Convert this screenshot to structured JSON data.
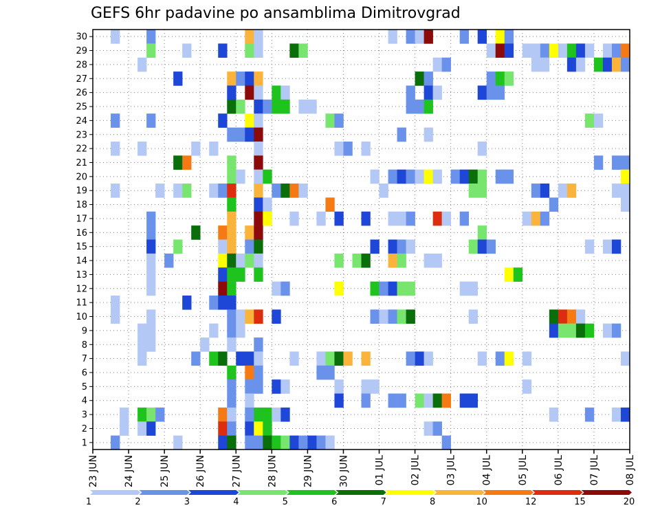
{
  "chart_data": {
    "type": "heatmap",
    "title": "GEFS 6hr padavine po ansamblima Dimitrovgrad",
    "ylim": [
      0.5,
      30.5
    ],
    "xlim": [
      0,
      60
    ],
    "grid": true,
    "yticks": [
      "1",
      "2",
      "3",
      "4",
      "5",
      "6",
      "7",
      "8",
      "9",
      "10",
      "11",
      "12",
      "13",
      "14",
      "15",
      "16",
      "17",
      "18",
      "19",
      "20",
      "21",
      "22",
      "23",
      "24",
      "25",
      "26",
      "27",
      "28",
      "29",
      "30"
    ],
    "xticks": [
      {
        "label": "23 JUN",
        "x": 0
      },
      {
        "label": "24 JUN",
        "x": 4
      },
      {
        "label": "25 JUN",
        "x": 8
      },
      {
        "label": "26 JUN",
        "x": 12
      },
      {
        "label": "27 JUN",
        "x": 16
      },
      {
        "label": "28 JUN",
        "x": 20
      },
      {
        "label": "29 JUN",
        "x": 24
      },
      {
        "label": "30 JUN",
        "x": 28
      },
      {
        "label": "01 JUL",
        "x": 32
      },
      {
        "label": "02 JUL",
        "x": 36
      },
      {
        "label": "03 JUL",
        "x": 40
      },
      {
        "label": "04 JUL",
        "x": 44
      },
      {
        "label": "05 JUL",
        "x": 48
      },
      {
        "label": "06 JUL",
        "x": 52
      },
      {
        "label": "07 JUL",
        "x": 56
      },
      {
        "label": "08 JUL",
        "x": 60
      }
    ],
    "colorbar": {
      "labels": [
        "1",
        "2",
        "3",
        "4",
        "5",
        "6",
        "7",
        "8",
        "10",
        "12",
        "15",
        "20"
      ],
      "colors": [
        "#b4c8f5",
        "#6a92eb",
        "#1e46d7",
        "#78e66e",
        "#1ec31e",
        "#0a6e0a",
        "#ffff00",
        "#fab43c",
        "#f57a14",
        "#dc2d0f",
        "#8c0a0a"
      ]
    },
    "cells": [
      [
        30,
        3,
        0
      ],
      [
        30,
        7,
        1
      ],
      [
        30,
        18,
        7
      ],
      [
        30,
        19,
        0
      ],
      [
        30,
        34,
        0
      ],
      [
        30,
        36,
        1
      ],
      [
        30,
        37,
        0
      ],
      [
        30,
        38,
        10
      ],
      [
        30,
        42,
        1
      ],
      [
        30,
        44,
        2
      ],
      [
        30,
        46,
        6
      ],
      [
        30,
        47,
        1
      ],
      [
        29,
        7,
        3
      ],
      [
        29,
        11,
        0
      ],
      [
        29,
        15,
        2
      ],
      [
        29,
        18,
        3
      ],
      [
        29,
        19,
        0
      ],
      [
        29,
        23,
        5
      ],
      [
        29,
        24,
        3
      ],
      [
        29,
        45,
        0
      ],
      [
        29,
        46,
        10
      ],
      [
        29,
        47,
        2
      ],
      [
        29,
        49,
        0
      ],
      [
        29,
        50,
        0
      ],
      [
        29,
        51,
        1
      ],
      [
        29,
        52,
        6
      ],
      [
        29,
        53,
        0
      ],
      [
        29,
        54,
        4
      ],
      [
        29,
        55,
        2
      ],
      [
        29,
        56,
        0
      ],
      [
        29,
        58,
        0
      ],
      [
        29,
        59,
        1
      ],
      [
        29,
        60,
        8
      ],
      [
        28,
        6,
        0
      ],
      [
        28,
        39,
        0
      ],
      [
        28,
        40,
        1
      ],
      [
        28,
        50,
        0
      ],
      [
        28,
        51,
        0
      ],
      [
        28,
        54,
        2
      ],
      [
        28,
        55,
        0
      ],
      [
        28,
        57,
        4
      ],
      [
        28,
        58,
        2
      ],
      [
        28,
        59,
        7
      ],
      [
        28,
        60,
        1
      ],
      [
        27,
        10,
        2
      ],
      [
        27,
        16,
        7
      ],
      [
        27,
        17,
        1
      ],
      [
        27,
        18,
        2
      ],
      [
        27,
        19,
        7
      ],
      [
        27,
        37,
        5
      ],
      [
        27,
        38,
        1
      ],
      [
        27,
        45,
        1
      ],
      [
        27,
        46,
        4
      ],
      [
        27,
        47,
        3
      ],
      [
        26,
        16,
        2
      ],
      [
        26,
        18,
        10
      ],
      [
        26,
        19,
        0
      ],
      [
        26,
        21,
        4
      ],
      [
        26,
        22,
        0
      ],
      [
        26,
        36,
        1
      ],
      [
        26,
        38,
        2
      ],
      [
        26,
        39,
        0
      ],
      [
        26,
        44,
        2
      ],
      [
        26,
        45,
        1
      ],
      [
        26,
        46,
        1
      ],
      [
        25,
        16,
        5
      ],
      [
        25,
        17,
        3
      ],
      [
        25,
        19,
        2
      ],
      [
        25,
        20,
        1
      ],
      [
        25,
        21,
        4
      ],
      [
        25,
        22,
        4
      ],
      [
        25,
        24,
        0
      ],
      [
        25,
        25,
        0
      ],
      [
        25,
        36,
        1
      ],
      [
        25,
        37,
        1
      ],
      [
        25,
        38,
        4
      ],
      [
        24,
        3,
        1
      ],
      [
        24,
        7,
        1
      ],
      [
        24,
        15,
        2
      ],
      [
        24,
        18,
        6
      ],
      [
        24,
        19,
        0
      ],
      [
        24,
        27,
        3
      ],
      [
        24,
        28,
        1
      ],
      [
        24,
        56,
        3
      ],
      [
        24,
        57,
        0
      ],
      [
        23,
        16,
        1
      ],
      [
        23,
        17,
        1
      ],
      [
        23,
        18,
        2
      ],
      [
        23,
        19,
        10
      ],
      [
        23,
        35,
        1
      ],
      [
        23,
        38,
        0
      ],
      [
        22,
        3,
        0
      ],
      [
        22,
        6,
        0
      ],
      [
        22,
        12,
        0
      ],
      [
        22,
        14,
        0
      ],
      [
        22,
        19,
        0
      ],
      [
        22,
        28,
        0
      ],
      [
        22,
        29,
        1
      ],
      [
        22,
        31,
        0
      ],
      [
        22,
        44,
        0
      ],
      [
        21,
        10,
        5
      ],
      [
        21,
        11,
        8
      ],
      [
        21,
        16,
        3
      ],
      [
        21,
        19,
        10
      ],
      [
        21,
        57,
        1
      ],
      [
        21,
        59,
        1
      ],
      [
        21,
        60,
        1
      ],
      [
        20,
        16,
        3
      ],
      [
        20,
        17,
        0
      ],
      [
        20,
        19,
        0
      ],
      [
        20,
        20,
        4
      ],
      [
        20,
        32,
        0
      ],
      [
        20,
        34,
        1
      ],
      [
        20,
        35,
        2
      ],
      [
        20,
        36,
        1
      ],
      [
        20,
        37,
        0
      ],
      [
        20,
        38,
        6
      ],
      [
        20,
        39,
        0
      ],
      [
        20,
        41,
        1
      ],
      [
        20,
        42,
        2
      ],
      [
        20,
        43,
        5
      ],
      [
        20,
        44,
        3
      ],
      [
        20,
        46,
        1
      ],
      [
        20,
        47,
        1
      ],
      [
        20,
        60,
        6
      ],
      [
        19,
        3,
        0
      ],
      [
        19,
        8,
        0
      ],
      [
        19,
        10,
        0
      ],
      [
        19,
        11,
        3
      ],
      [
        19,
        14,
        0
      ],
      [
        19,
        15,
        1
      ],
      [
        19,
        16,
        9
      ],
      [
        19,
        19,
        7
      ],
      [
        19,
        21,
        1
      ],
      [
        19,
        22,
        5
      ],
      [
        19,
        23,
        8
      ],
      [
        19,
        24,
        0
      ],
      [
        19,
        33,
        0
      ],
      [
        19,
        43,
        3
      ],
      [
        19,
        44,
        3
      ],
      [
        19,
        50,
        1
      ],
      [
        19,
        51,
        2
      ],
      [
        19,
        53,
        0
      ],
      [
        19,
        54,
        7
      ],
      [
        19,
        59,
        0
      ],
      [
        19,
        60,
        0
      ],
      [
        18,
        16,
        4
      ],
      [
        18,
        19,
        2
      ],
      [
        18,
        20,
        0
      ],
      [
        18,
        27,
        8
      ],
      [
        18,
        52,
        1
      ],
      [
        18,
        60,
        0
      ],
      [
        17,
        7,
        1
      ],
      [
        17,
        16,
        7
      ],
      [
        17,
        19,
        10
      ],
      [
        17,
        20,
        6
      ],
      [
        17,
        23,
        0
      ],
      [
        17,
        26,
        0
      ],
      [
        17,
        28,
        2
      ],
      [
        17,
        31,
        2
      ],
      [
        17,
        34,
        0
      ],
      [
        17,
        35,
        0
      ],
      [
        17,
        36,
        1
      ],
      [
        17,
        39,
        9
      ],
      [
        17,
        40,
        0
      ],
      [
        17,
        42,
        1
      ],
      [
        17,
        49,
        0
      ],
      [
        17,
        50,
        7
      ],
      [
        17,
        51,
        1
      ],
      [
        16,
        7,
        1
      ],
      [
        16,
        12,
        5
      ],
      [
        16,
        15,
        8
      ],
      [
        16,
        16,
        7
      ],
      [
        16,
        18,
        7
      ],
      [
        16,
        19,
        10
      ],
      [
        16,
        44,
        3
      ],
      [
        15,
        7,
        2
      ],
      [
        15,
        10,
        3
      ],
      [
        15,
        15,
        0
      ],
      [
        15,
        16,
        7
      ],
      [
        15,
        18,
        1
      ],
      [
        15,
        19,
        5
      ],
      [
        15,
        32,
        2
      ],
      [
        15,
        34,
        2
      ],
      [
        15,
        35,
        1
      ],
      [
        15,
        36,
        0
      ],
      [
        15,
        43,
        3
      ],
      [
        15,
        44,
        2
      ],
      [
        15,
        45,
        1
      ],
      [
        15,
        56,
        0
      ],
      [
        15,
        58,
        0
      ],
      [
        15,
        59,
        2
      ],
      [
        14,
        7,
        0
      ],
      [
        14,
        9,
        1
      ],
      [
        14,
        15,
        6
      ],
      [
        14,
        16,
        5
      ],
      [
        14,
        17,
        0
      ],
      [
        14,
        18,
        3
      ],
      [
        14,
        19,
        0
      ],
      [
        14,
        28,
        3
      ],
      [
        14,
        30,
        3
      ],
      [
        14,
        31,
        5
      ],
      [
        14,
        34,
        7
      ],
      [
        14,
        35,
        3
      ],
      [
        14,
        38,
        0
      ],
      [
        14,
        39,
        0
      ],
      [
        13,
        7,
        0
      ],
      [
        13,
        15,
        2
      ],
      [
        13,
        16,
        4
      ],
      [
        13,
        17,
        4
      ],
      [
        13,
        19,
        4
      ],
      [
        13,
        47,
        6
      ],
      [
        13,
        48,
        4
      ],
      [
        12,
        7,
        0
      ],
      [
        12,
        15,
        10
      ],
      [
        12,
        16,
        4
      ],
      [
        12,
        21,
        0
      ],
      [
        12,
        22,
        1
      ],
      [
        12,
        28,
        6
      ],
      [
        12,
        32,
        4
      ],
      [
        12,
        33,
        1
      ],
      [
        12,
        34,
        2
      ],
      [
        12,
        35,
        3
      ],
      [
        12,
        36,
        3
      ],
      [
        12,
        42,
        0
      ],
      [
        12,
        43,
        0
      ],
      [
        11,
        3,
        0
      ],
      [
        11,
        11,
        2
      ],
      [
        11,
        14,
        1
      ],
      [
        11,
        15,
        2
      ],
      [
        11,
        16,
        2
      ],
      [
        10,
        3,
        0
      ],
      [
        10,
        7,
        0
      ],
      [
        10,
        16,
        1
      ],
      [
        10,
        17,
        0
      ],
      [
        10,
        18,
        7
      ],
      [
        10,
        19,
        9
      ],
      [
        10,
        21,
        2
      ],
      [
        10,
        32,
        1
      ],
      [
        10,
        33,
        0
      ],
      [
        10,
        34,
        1
      ],
      [
        10,
        35,
        3
      ],
      [
        10,
        36,
        5
      ],
      [
        10,
        43,
        0
      ],
      [
        10,
        52,
        5
      ],
      [
        10,
        53,
        9
      ],
      [
        10,
        54,
        8
      ],
      [
        10,
        55,
        0
      ],
      [
        9,
        6,
        0
      ],
      [
        9,
        7,
        0
      ],
      [
        9,
        14,
        0
      ],
      [
        9,
        16,
        1
      ],
      [
        9,
        17,
        0
      ],
      [
        9,
        52,
        2
      ],
      [
        9,
        53,
        3
      ],
      [
        9,
        54,
        3
      ],
      [
        9,
        55,
        5
      ],
      [
        9,
        56,
        4
      ],
      [
        9,
        58,
        0
      ],
      [
        9,
        59,
        1
      ],
      [
        8,
        6,
        0
      ],
      [
        8,
        7,
        0
      ],
      [
        8,
        13,
        0
      ],
      [
        8,
        16,
        0
      ],
      [
        8,
        19,
        1
      ],
      [
        7,
        6,
        0
      ],
      [
        7,
        12,
        1
      ],
      [
        7,
        14,
        4
      ],
      [
        7,
        15,
        5
      ],
      [
        7,
        17,
        2
      ],
      [
        7,
        18,
        2
      ],
      [
        7,
        19,
        0
      ],
      [
        7,
        23,
        0
      ],
      [
        7,
        26,
        0
      ],
      [
        7,
        27,
        3
      ],
      [
        7,
        28,
        5
      ],
      [
        7,
        29,
        7
      ],
      [
        7,
        31,
        7
      ],
      [
        7,
        36,
        1
      ],
      [
        7,
        37,
        2
      ],
      [
        7,
        38,
        0
      ],
      [
        7,
        44,
        0
      ],
      [
        7,
        46,
        1
      ],
      [
        7,
        47,
        6
      ],
      [
        7,
        49,
        0
      ],
      [
        7,
        60,
        0
      ],
      [
        6,
        16,
        4
      ],
      [
        6,
        18,
        8
      ],
      [
        6,
        19,
        1
      ],
      [
        6,
        26,
        1
      ],
      [
        6,
        27,
        1
      ],
      [
        5,
        16,
        1
      ],
      [
        5,
        18,
        1
      ],
      [
        5,
        19,
        1
      ],
      [
        5,
        21,
        2
      ],
      [
        5,
        22,
        0
      ],
      [
        5,
        28,
        0
      ],
      [
        5,
        31,
        0
      ],
      [
        5,
        32,
        0
      ],
      [
        5,
        49,
        0
      ],
      [
        4,
        16,
        1
      ],
      [
        4,
        18,
        0
      ],
      [
        4,
        28,
        2
      ],
      [
        4,
        31,
        1
      ],
      [
        4,
        34,
        1
      ],
      [
        4,
        35,
        1
      ],
      [
        4,
        37,
        3
      ],
      [
        4,
        38,
        0
      ],
      [
        4,
        39,
        5
      ],
      [
        4,
        40,
        8
      ],
      [
        4,
        42,
        2
      ],
      [
        4,
        43,
        2
      ],
      [
        3,
        4,
        0
      ],
      [
        3,
        6,
        4
      ],
      [
        3,
        7,
        3
      ],
      [
        3,
        8,
        1
      ],
      [
        3,
        15,
        8
      ],
      [
        3,
        16,
        0
      ],
      [
        3,
        18,
        1
      ],
      [
        3,
        19,
        4
      ],
      [
        3,
        20,
        4
      ],
      [
        3,
        21,
        0
      ],
      [
        3,
        22,
        2
      ],
      [
        3,
        52,
        0
      ],
      [
        3,
        56,
        1
      ],
      [
        3,
        59,
        0
      ],
      [
        3,
        60,
        2
      ],
      [
        2,
        4,
        0
      ],
      [
        2,
        6,
        0
      ],
      [
        2,
        7,
        2
      ],
      [
        2,
        15,
        9
      ],
      [
        2,
        16,
        1
      ],
      [
        2,
        18,
        2
      ],
      [
        2,
        19,
        6
      ],
      [
        2,
        20,
        4
      ],
      [
        2,
        38,
        0
      ],
      [
        2,
        39,
        1
      ],
      [
        1,
        3,
        1
      ],
      [
        1,
        10,
        0
      ],
      [
        1,
        15,
        2
      ],
      [
        1,
        16,
        5
      ],
      [
        1,
        18,
        1
      ],
      [
        1,
        19,
        1
      ],
      [
        1,
        20,
        5
      ],
      [
        1,
        21,
        4
      ],
      [
        1,
        22,
        3
      ],
      [
        1,
        23,
        2
      ],
      [
        1,
        24,
        1
      ],
      [
        1,
        25,
        2
      ],
      [
        1,
        26,
        1
      ],
      [
        1,
        27,
        0
      ],
      [
        1,
        40,
        1
      ]
    ]
  }
}
